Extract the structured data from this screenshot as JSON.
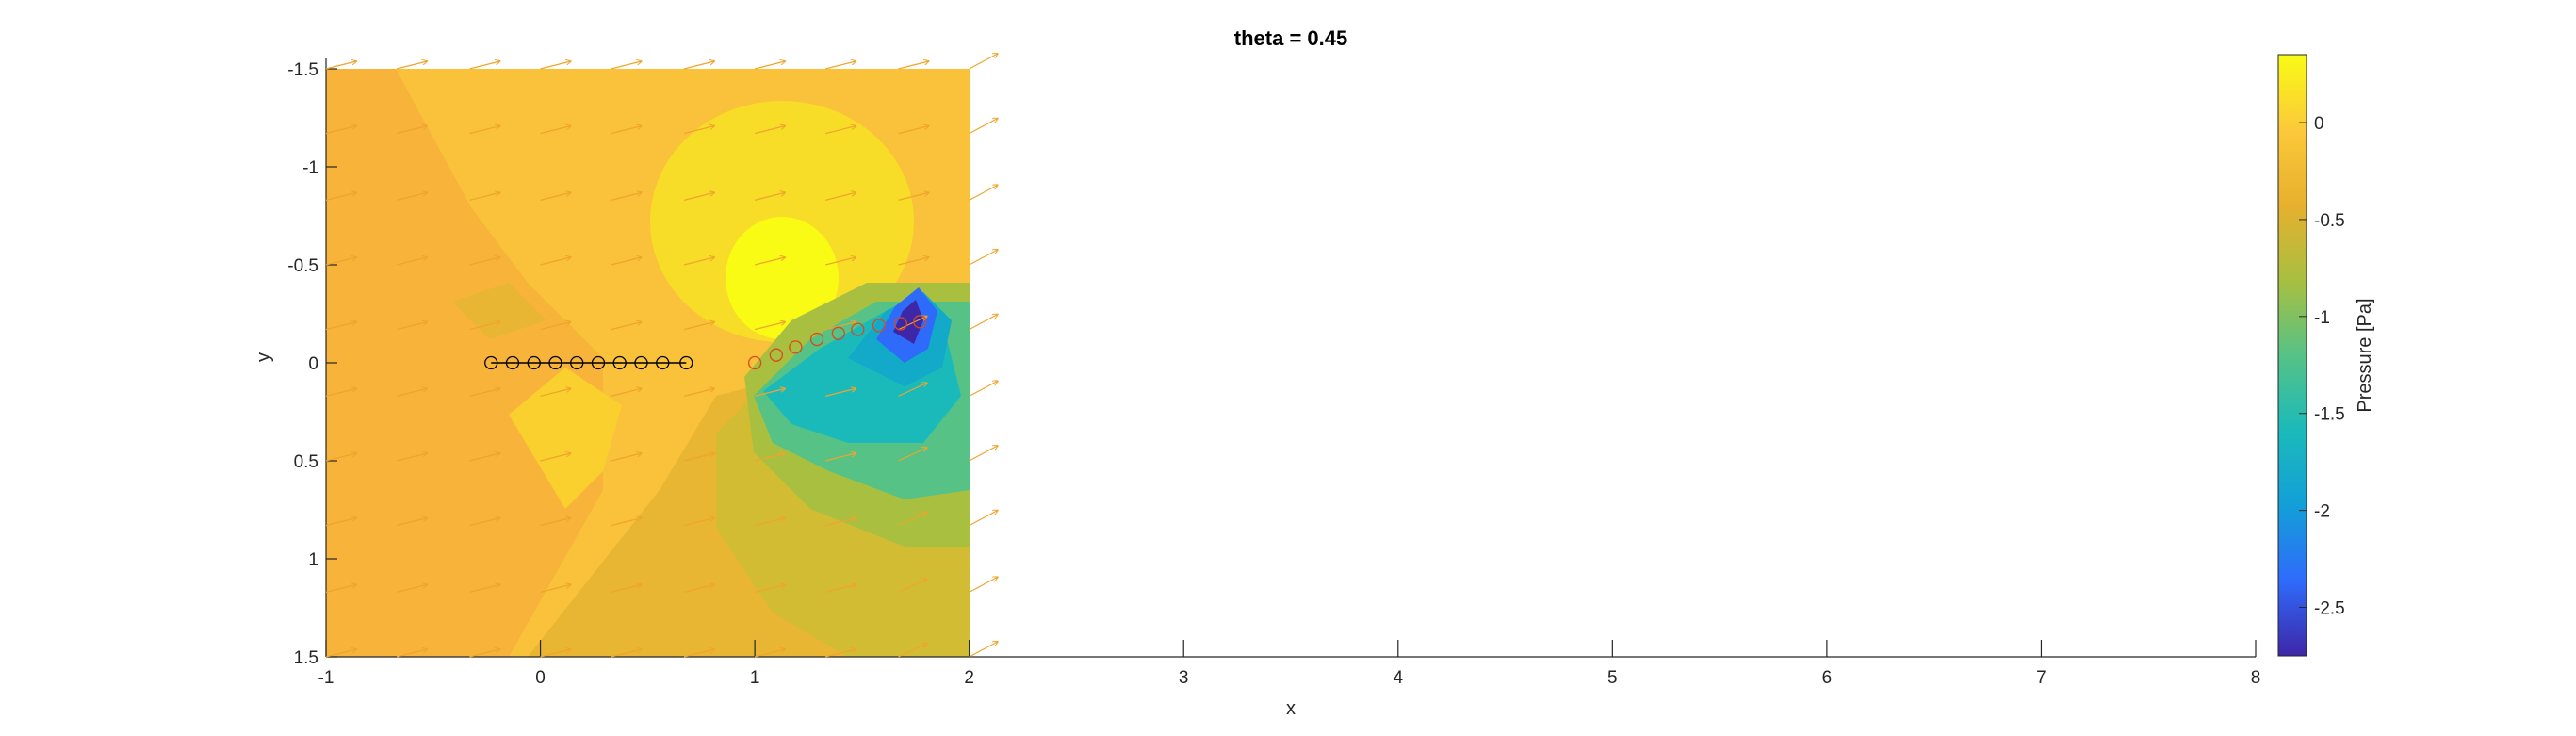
{
  "chart_data": {
    "type": "contour",
    "title": "theta = 0.45",
    "xlabel": "x",
    "ylabel": "y",
    "xlim": [
      -1,
      8
    ],
    "ylim": [
      -1.5,
      1.5
    ],
    "y_direction": "reversed",
    "x_ticks": [
      -1,
      0,
      1,
      2,
      3,
      4,
      5,
      6,
      7,
      8
    ],
    "y_ticks": [
      -1.5,
      -1,
      -0.5,
      0,
      0.5,
      1,
      1.5
    ],
    "field_domain": {
      "x": [
        -1,
        2
      ],
      "y": [
        -1.5,
        1.5
      ]
    },
    "colorbar": {
      "label": "Pressure [Pa]",
      "range": [
        -2.75,
        0.35
      ],
      "ticks": [
        0,
        -0.5,
        -1,
        -1.5,
        -2,
        -2.5
      ],
      "colors": [
        "#3e26a8",
        "#2f6bfb",
        "#139fd8",
        "#1bbaba",
        "#56c286",
        "#a8bf40",
        "#e7b02e",
        "#fbc93a",
        "#f9fb15"
      ]
    },
    "upstream_markers": {
      "color": "#000000",
      "x": [
        -0.23,
        -0.13,
        -0.03,
        0.07,
        0.17,
        0.27,
        0.37,
        0.47,
        0.57,
        0.68
      ],
      "y": [
        0,
        0,
        0,
        0,
        0,
        0,
        0,
        0,
        0,
        0
      ]
    },
    "wake_markers": {
      "color": "#d94a1e",
      "x": [
        1.0,
        1.1,
        1.19,
        1.29,
        1.39,
        1.48,
        1.58,
        1.68,
        1.77
      ],
      "y": [
        0,
        -0.04,
        -0.08,
        -0.12,
        -0.15,
        -0.17,
        -0.19,
        -0.2,
        -0.21
      ]
    },
    "quiver": {
      "color": "#f0a42c",
      "x": [
        -1,
        -0.67,
        -0.33,
        0,
        0.33,
        0.67,
        1,
        1.33,
        1.67,
        2
      ],
      "y": [
        -1.5,
        -1.17,
        -0.83,
        -0.5,
        -0.17,
        0.17,
        0.5,
        0.83,
        1.17,
        1.5
      ]
    }
  }
}
